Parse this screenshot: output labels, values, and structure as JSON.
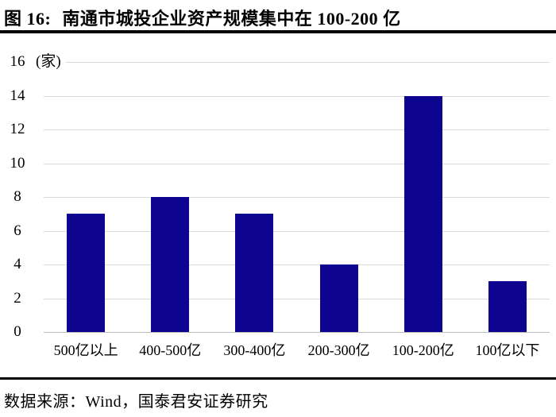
{
  "title": {
    "prefix": "图 16:",
    "text": "南通市城投企业资产规模集中在 100-200 亿"
  },
  "chart_data": {
    "type": "bar",
    "categories": [
      "500亿以上",
      "400-500亿",
      "300-400亿",
      "200-300亿",
      "100-200亿",
      "100亿以下"
    ],
    "values": [
      7,
      8,
      7,
      4,
      14,
      3
    ],
    "title": "南通市城投企业资产规模集中在 100-200 亿",
    "xlabel": "",
    "ylabel": "(家)",
    "unit_label": "(家)",
    "ylim": [
      0,
      16
    ],
    "yticks": [
      0,
      2,
      4,
      6,
      8,
      10,
      12,
      14,
      16
    ],
    "grid": "horizontal",
    "legend": "none",
    "colors": {
      "bar": "#0D0590",
      "gridline": "#DADADA",
      "baseline": "#BDBDBD",
      "text": "#000000"
    }
  },
  "footer": {
    "source": "数据来源：Wind，国泰君安证券研究"
  }
}
